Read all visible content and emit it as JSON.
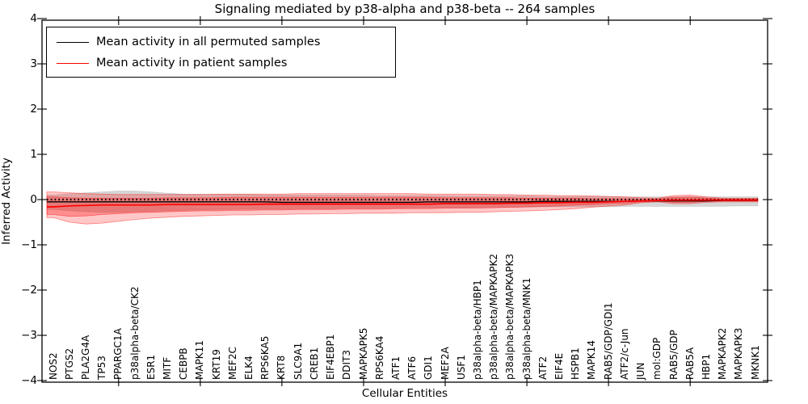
{
  "title": "Signaling mediated by p38-alpha and p38-beta -- 264 samples",
  "axes": {
    "ylabel": "Inferred Activity",
    "xlabel": "Cellular Entities"
  },
  "legend": {
    "items": [
      {
        "label": "Mean activity in all permuted samples",
        "color": "#000000"
      },
      {
        "label": "Mean activity in patient samples",
        "color": "#ff0000"
      }
    ]
  },
  "chart_data": {
    "type": "line",
    "title": "Signaling mediated by p38-alpha and p38-beta -- 264 samples",
    "xlabel": "Cellular Entities",
    "ylabel": "Inferred Activity",
    "ylim": [
      -4,
      4
    ],
    "yticks": [
      4,
      3,
      2,
      1,
      0,
      -1,
      -2,
      -3,
      -4
    ],
    "grid": false,
    "legend_position": "upper left",
    "categories": [
      "NOS2",
      "PTGS2",
      "PLA2G4A",
      "TP53",
      "PPARGC1A",
      "p38alpha-beta/CK2",
      "ESR1",
      "MITF",
      "CEBPB",
      "MAPK11",
      "KRT19",
      "MEF2C",
      "ELK4",
      "RPS6KA5",
      "KRT8",
      "SLC9A1",
      "CREB1",
      "EIF4EBP1",
      "DDIT3",
      "MAPKAPK5",
      "RPS6KA4",
      "ATF1",
      "ATF6",
      "GDI1",
      "MEF2A",
      "USF1",
      "p38alpha-beta/HBP1",
      "p38alpha-beta/MAPKAPK2",
      "p38alpha-beta/MAPKAPK3",
      "p38alpha-beta/MNK1",
      "ATF2",
      "EIF4E",
      "HSPB1",
      "MAPK14",
      "RAB5/GDP/GDI1",
      "ATF2/c-Jun",
      "JUN",
      "mol:GDP",
      "RAB5/GDP",
      "RAB5A",
      "HBP1",
      "MAPKAPK2",
      "MAPKAPK3",
      "MKNK1"
    ],
    "x_major_tick_indices": [
      4,
      9,
      14,
      19,
      24,
      29,
      34,
      39
    ],
    "series": [
      {
        "name": "Mean activity in all permuted samples",
        "color": "#000000",
        "width": 1.4,
        "values": [
          -0.05,
          -0.05,
          -0.05,
          -0.05,
          -0.05,
          -0.05,
          -0.05,
          -0.05,
          -0.05,
          -0.05,
          -0.05,
          -0.05,
          -0.05,
          -0.05,
          -0.06,
          -0.06,
          -0.06,
          -0.06,
          -0.06,
          -0.06,
          -0.06,
          -0.06,
          -0.06,
          -0.05,
          -0.05,
          -0.05,
          -0.05,
          -0.05,
          -0.05,
          -0.05,
          -0.04,
          -0.04,
          -0.04,
          -0.04,
          -0.04,
          -0.04,
          -0.03,
          -0.03,
          -0.03,
          -0.03,
          -0.03,
          -0.02,
          -0.02,
          -0.02
        ]
      },
      {
        "name": "Mean activity in patient samples",
        "color": "#ff0000",
        "width": 1.7,
        "values": [
          -0.16,
          -0.14,
          -0.13,
          -0.12,
          -0.12,
          -0.12,
          -0.12,
          -0.11,
          -0.11,
          -0.11,
          -0.11,
          -0.11,
          -0.11,
          -0.1,
          -0.1,
          -0.1,
          -0.1,
          -0.1,
          -0.1,
          -0.1,
          -0.1,
          -0.1,
          -0.1,
          -0.1,
          -0.09,
          -0.09,
          -0.09,
          -0.09,
          -0.08,
          -0.08,
          -0.07,
          -0.07,
          -0.06,
          -0.06,
          -0.05,
          -0.04,
          -0.03,
          -0.02,
          -0.01,
          -0.01,
          -0.01,
          -0.01,
          -0.01,
          -0.01
        ]
      }
    ],
    "bands": [
      {
        "name": "permuted-samples-range",
        "color": "#808080",
        "opacity": 0.32,
        "upper": [
          0.1,
          0.13,
          0.15,
          0.17,
          0.19,
          0.19,
          0.17,
          0.14,
          0.12,
          0.12,
          0.11,
          0.11,
          0.11,
          0.1,
          0.1,
          0.1,
          0.1,
          0.1,
          0.1,
          0.1,
          0.09,
          0.09,
          0.09,
          0.09,
          0.09,
          0.08,
          0.08,
          0.08,
          0.08,
          0.08,
          0.07,
          0.07,
          0.07,
          0.07,
          0.07,
          0.06,
          0.06,
          0.06,
          0.06,
          0.06,
          0.06,
          0.06,
          0.06,
          0.06
        ],
        "lower": [
          -0.22,
          -0.25,
          -0.27,
          -0.28,
          -0.28,
          -0.27,
          -0.26,
          -0.25,
          -0.24,
          -0.23,
          -0.22,
          -0.22,
          -0.21,
          -0.21,
          -0.21,
          -0.2,
          -0.2,
          -0.2,
          -0.19,
          -0.19,
          -0.19,
          -0.19,
          -0.18,
          -0.18,
          -0.18,
          -0.18,
          -0.17,
          -0.17,
          -0.17,
          -0.17,
          -0.16,
          -0.16,
          -0.16,
          -0.16,
          -0.16,
          -0.15,
          -0.15,
          -0.15,
          -0.15,
          -0.15,
          -0.15,
          -0.15,
          -0.14,
          -0.14
        ]
      },
      {
        "name": "patient-samples-range-outer",
        "color": "#ff0000",
        "opacity": 0.22,
        "upper": [
          0.17,
          0.15,
          0.13,
          0.12,
          0.11,
          0.11,
          0.11,
          0.11,
          0.11,
          0.11,
          0.12,
          0.12,
          0.12,
          0.12,
          0.12,
          0.13,
          0.13,
          0.13,
          0.13,
          0.13,
          0.13,
          0.13,
          0.13,
          0.12,
          0.12,
          0.12,
          0.12,
          0.11,
          0.11,
          0.1,
          0.1,
          0.09,
          0.09,
          0.08,
          0.07,
          0.06,
          0.04,
          0.03,
          0.09,
          0.1,
          0.06,
          0.03,
          0.03,
          0.03
        ],
        "lower": [
          -0.4,
          -0.5,
          -0.54,
          -0.52,
          -0.48,
          -0.44,
          -0.41,
          -0.39,
          -0.37,
          -0.36,
          -0.35,
          -0.34,
          -0.34,
          -0.33,
          -0.33,
          -0.32,
          -0.32,
          -0.31,
          -0.31,
          -0.3,
          -0.3,
          -0.3,
          -0.29,
          -0.29,
          -0.29,
          -0.28,
          -0.28,
          -0.27,
          -0.26,
          -0.25,
          -0.24,
          -0.22,
          -0.2,
          -0.17,
          -0.14,
          -0.12,
          -0.07,
          -0.05,
          -0.09,
          -0.09,
          -0.06,
          -0.05,
          -0.05,
          -0.05
        ]
      },
      {
        "name": "patient-samples-range-inner",
        "color": "#ff0000",
        "opacity": 0.28,
        "upper": [
          0.06,
          0.04,
          0.03,
          0.03,
          0.03,
          0.03,
          0.03,
          0.04,
          0.04,
          0.04,
          0.04,
          0.05,
          0.05,
          0.05,
          0.05,
          0.05,
          0.05,
          0.05,
          0.05,
          0.05,
          0.05,
          0.05,
          0.05,
          0.05,
          0.04,
          0.04,
          0.04,
          0.04,
          0.04,
          0.03,
          0.03,
          0.03,
          0.03,
          0.02,
          0.02,
          0.02,
          0.01,
          0.01,
          0.05,
          0.06,
          0.03,
          0.01,
          0.01,
          0.01
        ],
        "lower": [
          -0.33,
          -0.37,
          -0.36,
          -0.33,
          -0.31,
          -0.29,
          -0.28,
          -0.27,
          -0.26,
          -0.25,
          -0.25,
          -0.24,
          -0.24,
          -0.23,
          -0.23,
          -0.22,
          -0.22,
          -0.22,
          -0.21,
          -0.21,
          -0.21,
          -0.2,
          -0.2,
          -0.2,
          -0.19,
          -0.19,
          -0.19,
          -0.18,
          -0.17,
          -0.16,
          -0.15,
          -0.14,
          -0.12,
          -0.11,
          -0.09,
          -0.08,
          -0.05,
          -0.03,
          -0.06,
          -0.06,
          -0.04,
          -0.03,
          -0.03,
          -0.03
        ]
      }
    ],
    "reference_line": {
      "y": 0,
      "style": "dotted",
      "color": "#000000"
    }
  }
}
